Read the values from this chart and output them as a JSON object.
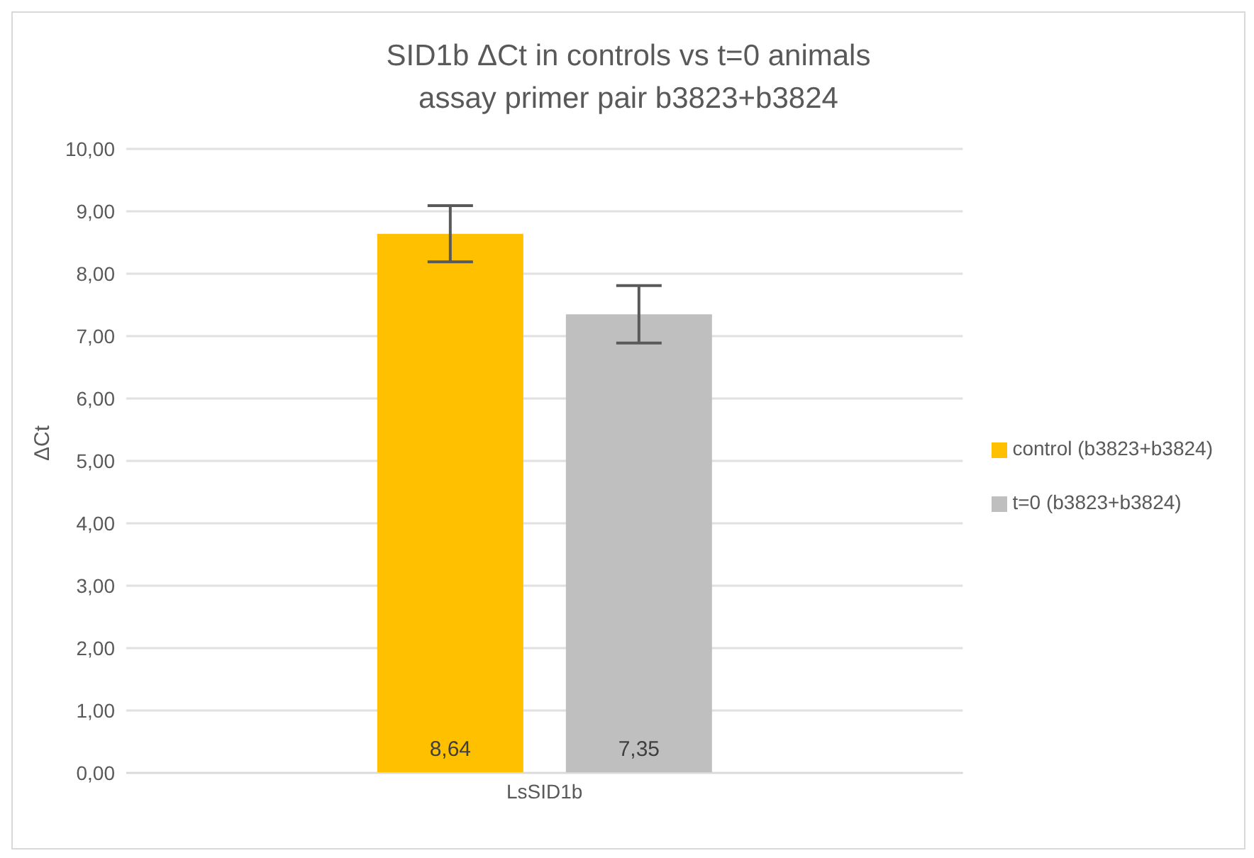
{
  "chart_data": {
    "type": "bar",
    "title": "SID1b ΔCt in controls vs t=0 animals",
    "subtitle": "assay primer pair b3823+b3824",
    "ylabel": "ΔCt",
    "categories": [
      "LsSID1b"
    ],
    "series": [
      {
        "name": "control (b3823+b3824)",
        "color": "#ffc000",
        "values": [
          8.64
        ],
        "errors": [
          0.45
        ],
        "value_labels": [
          "8,64"
        ]
      },
      {
        "name": "t=0 (b3823+b3824)",
        "color": "#bfbfbf",
        "values": [
          7.35
        ],
        "errors": [
          0.46
        ],
        "value_labels": [
          "7,35"
        ]
      }
    ],
    "ylim": [
      0,
      10
    ],
    "yticks": [
      {
        "value": 0,
        "label": "0,00"
      },
      {
        "value": 1,
        "label": "1,00"
      },
      {
        "value": 2,
        "label": "2,00"
      },
      {
        "value": 3,
        "label": "3,00"
      },
      {
        "value": 4,
        "label": "4,00"
      },
      {
        "value": 5,
        "label": "5,00"
      },
      {
        "value": 6,
        "label": "6,00"
      },
      {
        "value": 7,
        "label": "7,00"
      },
      {
        "value": 8,
        "label": "8,00"
      },
      {
        "value": 9,
        "label": "9,00"
      },
      {
        "value": 10,
        "label": "10,00"
      }
    ],
    "grid": "y",
    "legend": "right"
  }
}
